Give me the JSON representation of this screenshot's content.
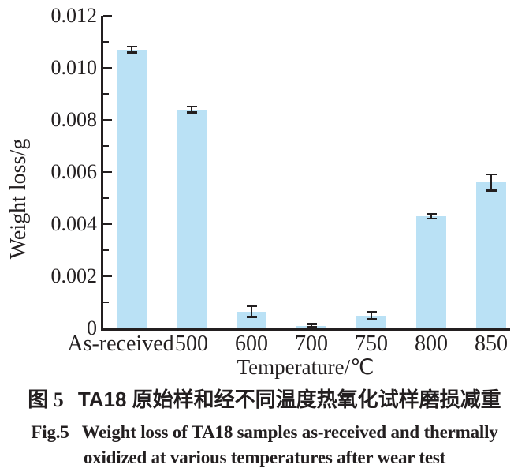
{
  "chart_data": {
    "type": "bar",
    "title": "",
    "categories": [
      "As-received",
      "500",
      "600",
      "700",
      "750",
      "800",
      "850"
    ],
    "values": [
      0.0107,
      0.0084,
      0.00065,
      0.0001,
      0.0005,
      0.0043,
      0.0056
    ],
    "error_bars": [
      0.00015,
      0.00015,
      0.00025,
      0.0001,
      0.00017,
      0.00012,
      0.00035
    ],
    "xlabel": "Temperature/℃",
    "ylabel": "Weight loss/g",
    "ylim": [
      0,
      0.012
    ],
    "yticks": [
      0,
      0.002,
      0.004,
      0.006,
      0.008,
      0.01,
      0.012
    ],
    "ytick_labels": [
      "0",
      "0.002",
      "0.004",
      "0.006",
      "0.008",
      "0.010",
      "0.012"
    ],
    "minor_tick_interval": 0.001,
    "grid": false,
    "legend": null,
    "bar_color": "#bae1f5",
    "axis_color": "#231f20"
  },
  "caption": {
    "number_cn": "图 5",
    "text_cn": "TA18 原始样和经不同温度热氧化试样磨损减重",
    "number_en": "Fig.5",
    "text_en_line1": "Weight loss of TA18 samples as-received and thermally",
    "text_en_line2": "oxidized at various temperatures after wear test"
  }
}
